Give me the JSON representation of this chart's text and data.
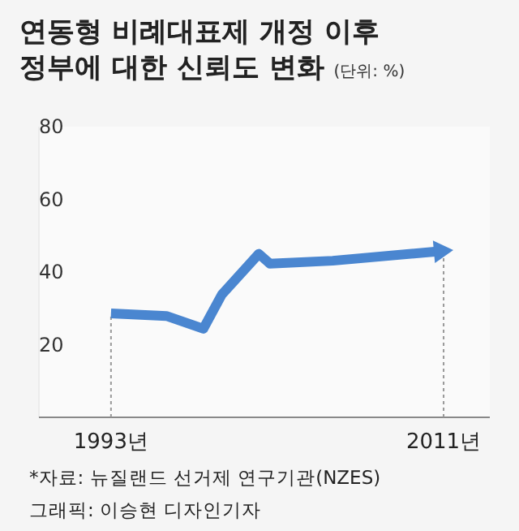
{
  "chart_data": {
    "type": "line",
    "title": "연동형 비례대표제 개정 이후\n정부에 대한 신뢰도 변화",
    "subtitle": "(단위: %)",
    "x": [
      1993,
      1996,
      1998,
      1999,
      2001,
      2001.6,
      2005,
      2011
    ],
    "series": [
      {
        "color": "#4a86d0",
        "values": [
          28.6,
          27.9,
          24.4,
          33.8,
          45,
          42.3,
          43.1,
          45.8
        ]
      }
    ],
    "xlim": [
      1989.1,
      2013.5
    ],
    "xticks": [
      {
        "value": 1993,
        "label": "1993년"
      },
      {
        "value": 2011,
        "label": "2011년"
      }
    ],
    "ylim": [
      0,
      80
    ],
    "yticks": [
      20,
      40,
      60,
      80
    ],
    "grid": false,
    "marker": "none",
    "line_style": "solid",
    "ref_lines": [
      {
        "axis": "x",
        "value": 1993,
        "line_style": "dotted",
        "color": "#999999"
      },
      {
        "axis": "x",
        "value": 2011,
        "line_style": "dotted",
        "color": "#999999"
      }
    ],
    "annotations": [
      "*자료: 뉴질랜드 선거제 연구기관(NZES)",
      "그래픽: 이승현 디자인기자"
    ]
  }
}
